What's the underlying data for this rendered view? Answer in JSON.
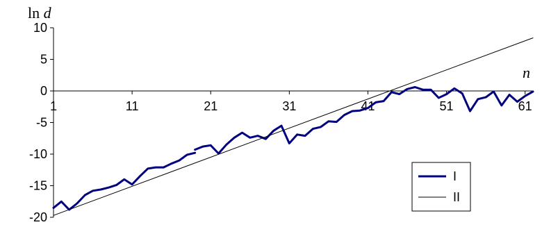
{
  "chart_data": {
    "type": "line",
    "title": "",
    "xlabel": "n",
    "ylabel": "ln d",
    "ylim": [
      -20,
      10
    ],
    "xlim": [
      1,
      62
    ],
    "x_ticks": [
      "1",
      "11",
      "21",
      "31",
      "41",
      "51",
      "61"
    ],
    "y_ticks": [
      "10",
      "5",
      "0",
      "-5",
      "-10",
      "-15",
      "-20"
    ],
    "grid": false,
    "legend": {
      "placement": "bottom-right"
    },
    "series": [
      {
        "name": "I",
        "color": "#000080",
        "segments": [
          {
            "x": [
              1,
              2,
              3,
              4,
              5,
              6,
              7,
              8,
              9,
              10,
              11,
              12,
              13,
              14,
              15,
              16,
              17,
              18,
              19
            ],
            "y": [
              -18.5,
              -17.5,
              -18.8,
              -17.8,
              -16.5,
              -15.8,
              -15.6,
              -15.3,
              -14.9,
              -14.0,
              -14.8,
              -13.5,
              -12.3,
              -12.1,
              -12.1,
              -11.5,
              -11.0,
              -10.1,
              -9.8
            ]
          },
          {
            "x": [
              19,
              20,
              21,
              22,
              23,
              24,
              25,
              26,
              27,
              28,
              29,
              30,
              31,
              32,
              33,
              34,
              35,
              36,
              37,
              38,
              39,
              40,
              41,
              42,
              43,
              44,
              45,
              46,
              47,
              48,
              49,
              50,
              51,
              52,
              53,
              54,
              55,
              56,
              57,
              58,
              59,
              60,
              61,
              62
            ],
            "y": [
              -9.3,
              -8.8,
              -8.6,
              -9.9,
              -8.5,
              -7.4,
              -6.6,
              -7.4,
              -7.1,
              -7.6,
              -6.3,
              -5.5,
              -8.3,
              -6.9,
              -7.1,
              -6.0,
              -5.7,
              -4.8,
              -4.9,
              -3.8,
              -3.2,
              -3.1,
              -2.7,
              -1.8,
              -1.6,
              -0.2,
              -0.5,
              0.3,
              0.6,
              0.2,
              0.2,
              -1.1,
              -0.5,
              0.4,
              -0.4,
              -3.2,
              -1.3,
              -1.0,
              -0.1,
              -2.3,
              -0.6,
              -1.7,
              -0.8,
              -0.1
            ]
          }
        ]
      },
      {
        "name": "II",
        "color": "#000000",
        "x": [
          1,
          62
        ],
        "y": [
          -19.7,
          8.4
        ]
      }
    ]
  }
}
